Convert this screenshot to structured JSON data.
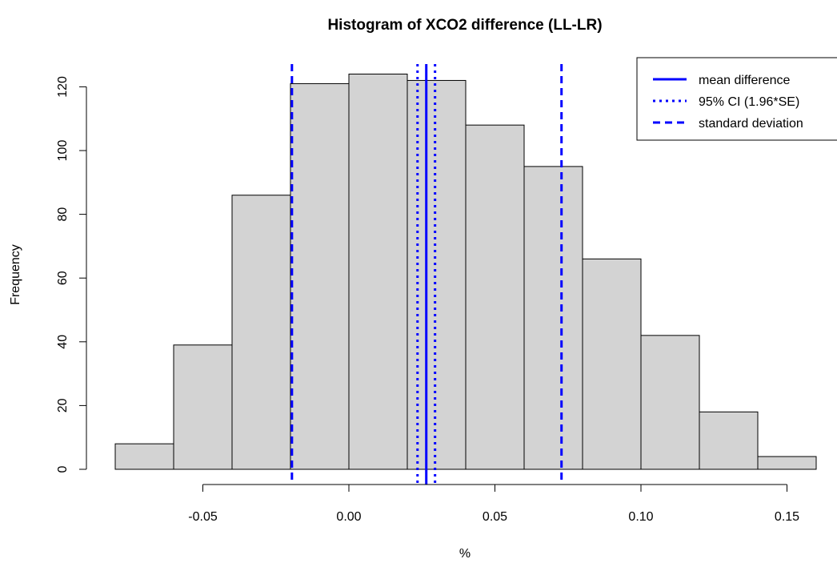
{
  "chart_data": {
    "type": "bar",
    "title": "Histogram of XCO2 difference (LL-LR)",
    "xlabel": "%",
    "ylabel": "Frequency",
    "xlim": [
      -0.08,
      0.16
    ],
    "ylim": [
      0,
      125
    ],
    "bin_edges": [
      -0.08,
      -0.06,
      -0.04,
      -0.02,
      0.0,
      0.02,
      0.04,
      0.06,
      0.08,
      0.1,
      0.12,
      0.14,
      0.16
    ],
    "values": [
      8,
      39,
      86,
      121,
      124,
      122,
      108,
      95,
      66,
      42,
      18,
      4
    ],
    "x_ticks": [
      -0.05,
      0.0,
      0.05,
      0.1,
      0.15
    ],
    "x_tick_labels": [
      "-0.05",
      "0.00",
      "0.05",
      "0.10",
      "0.15"
    ],
    "y_ticks": [
      0,
      20,
      40,
      60,
      80,
      100,
      120
    ],
    "y_tick_labels": [
      "0",
      "20",
      "40",
      "60",
      "80",
      "100",
      "120"
    ],
    "bar_color": "#d3d3d3",
    "reference_lines": [
      {
        "name": "mean difference",
        "x": 0.0265,
        "style": "solid",
        "color": "#0000ff"
      },
      {
        "name": "95% CI (1.96*SE)",
        "x": 0.0235,
        "style": "dotted",
        "color": "#0000ff"
      },
      {
        "name": "95% CI (1.96*SE)",
        "x": 0.0295,
        "style": "dotted",
        "color": "#0000ff"
      },
      {
        "name": "standard deviation",
        "x": -0.0195,
        "style": "dashed",
        "color": "#0000ff"
      },
      {
        "name": "standard deviation",
        "x": 0.0728,
        "style": "dashed",
        "color": "#0000ff"
      }
    ],
    "legend": {
      "placement": "top-right",
      "entries": [
        {
          "label": "mean difference",
          "style": "solid",
          "color": "#0000ff"
        },
        {
          "label": "95% CI (1.96*SE)",
          "style": "dotted",
          "color": "#0000ff"
        },
        {
          "label": "standard deviation",
          "style": "dashed",
          "color": "#0000ff"
        }
      ]
    },
    "grid": false
  }
}
